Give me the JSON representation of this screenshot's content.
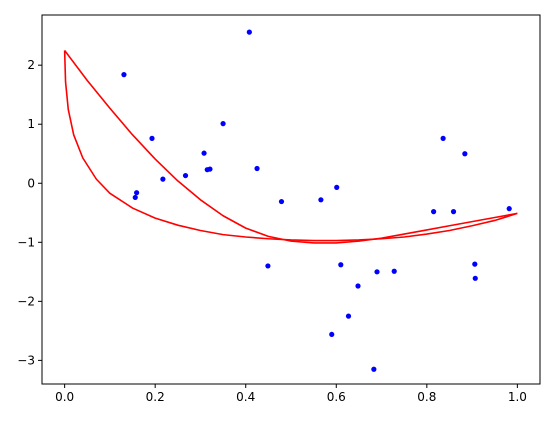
{
  "chart_data": {
    "type": "scatter",
    "title": "",
    "xlabel": "",
    "ylabel": "",
    "xlim": [
      -0.05,
      1.05
    ],
    "ylim": [
      -3.4,
      2.85
    ],
    "grid": false,
    "x_ticks": [
      0.0,
      0.2,
      0.4,
      0.6,
      0.8,
      1.0
    ],
    "x_tick_labels": [
      "0.0",
      "0.2",
      "0.4",
      "0.6",
      "0.8",
      "1.0"
    ],
    "y_ticks": [
      -3,
      -2,
      -1,
      0,
      1,
      2
    ],
    "y_tick_labels": [
      "−3",
      "−2",
      "−1",
      "0",
      "1",
      "2"
    ],
    "series": [
      {
        "kind": "scatter",
        "color": "#0000ff",
        "points": [
          [
            0.131,
            1.84
          ],
          [
            0.156,
            -0.24
          ],
          [
            0.159,
            -0.16
          ],
          [
            0.193,
            0.76
          ],
          [
            0.217,
            0.07
          ],
          [
            0.267,
            0.13
          ],
          [
            0.308,
            0.51
          ],
          [
            0.315,
            0.23
          ],
          [
            0.321,
            0.24
          ],
          [
            0.35,
            1.01
          ],
          [
            0.408,
            2.56
          ],
          [
            0.425,
            0.25
          ],
          [
            0.449,
            -1.4
          ],
          [
            0.479,
            -0.31
          ],
          [
            0.566,
            -0.28
          ],
          [
            0.59,
            -2.56
          ],
          [
            0.601,
            -0.07
          ],
          [
            0.61,
            -1.38
          ],
          [
            0.627,
            -2.25
          ],
          [
            0.648,
            -1.74
          ],
          [
            0.683,
            -3.15
          ],
          [
            0.69,
            -1.5
          ],
          [
            0.728,
            -1.49
          ],
          [
            0.815,
            -0.48
          ],
          [
            0.836,
            0.76
          ],
          [
            0.859,
            -0.48
          ],
          [
            0.884,
            0.5
          ],
          [
            0.906,
            -1.37
          ],
          [
            0.907,
            -1.61
          ],
          [
            0.982,
            -0.43
          ]
        ]
      },
      {
        "kind": "line",
        "color": "#ff0000",
        "points": [
          [
            0.0,
            2.25
          ],
          [
            0.05,
            1.74
          ],
          [
            0.1,
            1.27
          ],
          [
            0.15,
            0.82
          ],
          [
            0.2,
            0.41
          ],
          [
            0.25,
            0.04
          ],
          [
            0.3,
            -0.28
          ],
          [
            0.35,
            -0.55
          ],
          [
            0.4,
            -0.76
          ],
          [
            0.45,
            -0.9
          ],
          [
            0.5,
            -0.98
          ],
          [
            0.55,
            -1.01
          ],
          [
            0.6,
            -1.01
          ],
          [
            0.65,
            -0.98
          ],
          [
            0.7,
            -0.93
          ],
          [
            0.75,
            -0.86
          ],
          [
            0.8,
            -0.79
          ],
          [
            0.85,
            -0.72
          ],
          [
            0.9,
            -0.65
          ],
          [
            0.95,
            -0.58
          ],
          [
            1.0,
            -0.51
          ]
        ]
      },
      {
        "kind": "line",
        "color": "#ff0000",
        "points": [
          [
            0.0,
            2.25
          ],
          [
            0.002,
            1.72
          ],
          [
            0.008,
            1.25
          ],
          [
            0.02,
            0.82
          ],
          [
            0.04,
            0.43
          ],
          [
            0.07,
            0.07
          ],
          [
            0.1,
            -0.17
          ],
          [
            0.15,
            -0.42
          ],
          [
            0.2,
            -0.59
          ],
          [
            0.25,
            -0.71
          ],
          [
            0.3,
            -0.8
          ],
          [
            0.35,
            -0.87
          ],
          [
            0.4,
            -0.91
          ],
          [
            0.45,
            -0.94
          ],
          [
            0.5,
            -0.96
          ],
          [
            0.55,
            -0.97
          ],
          [
            0.6,
            -0.97
          ],
          [
            0.65,
            -0.96
          ],
          [
            0.7,
            -0.94
          ],
          [
            0.75,
            -0.91
          ],
          [
            0.8,
            -0.86
          ],
          [
            0.85,
            -0.8
          ],
          [
            0.9,
            -0.72
          ],
          [
            0.95,
            -0.63
          ],
          [
            1.0,
            -0.51
          ]
        ]
      }
    ]
  }
}
